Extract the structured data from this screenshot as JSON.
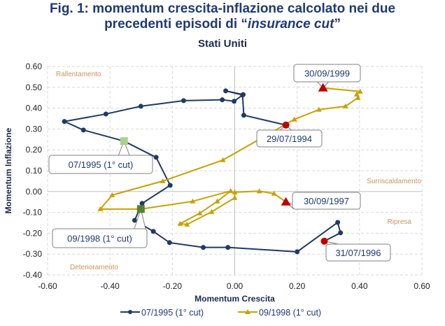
{
  "title_line1": "Fig. 1: momentum crescita-inflazione calcolato nei due",
  "title_line2_prefix": "precedenti episodi di “",
  "title_line2_italic": "insurance cut",
  "title_line2_suffix": "”",
  "subtitle": "Stati Uniti",
  "chart_data": {
    "type": "line",
    "title": "Fig. 1: momentum crescita-inflazione calcolato nei due precedenti episodi di “insurance cut”",
    "subtitle": "Stati Uniti",
    "xlabel": "Momentum Crescita",
    "ylabel": "Momentum Inflazione",
    "xlim": [
      -0.6,
      0.6
    ],
    "ylim": [
      -0.4,
      0.6
    ],
    "xticks": [
      "-0.60",
      "-0.40",
      "-0.20",
      "0.00",
      "0.20",
      "0.40",
      "0.60"
    ],
    "yticks": [
      "-0.40",
      "-0.30",
      "-0.20",
      "-0.10",
      "0.00",
      "0.10",
      "0.20",
      "0.30",
      "0.40",
      "0.50",
      "0.60"
    ],
    "grid": true,
    "legend_position": "bottom",
    "quadrant_labels": [
      "Rallentamento",
      "Surriscaldamento",
      "Ripresa",
      "Deterioramento"
    ],
    "series": [
      {
        "name": "07/1995 (1° cut)",
        "color": "#1f3b63",
        "marker": "circle",
        "x": [
          0.164,
          0.029,
          0.025,
          -0.029,
          0.027,
          -0.002,
          -0.04,
          -0.164,
          -0.301,
          -0.413,
          -0.546,
          -0.485,
          -0.355,
          -0.252,
          -0.207,
          -0.297,
          -0.321,
          -0.261,
          -0.209,
          -0.101,
          -0.022,
          0.2,
          0.33,
          0.339,
          0.287
        ],
        "y": [
          0.319,
          0.366,
          0.463,
          0.483,
          0.465,
          0.433,
          0.44,
          0.436,
          0.409,
          0.372,
          0.336,
          0.295,
          0.242,
          0.164,
          0.03,
          -0.057,
          -0.138,
          -0.191,
          -0.245,
          -0.268,
          -0.268,
          -0.289,
          -0.148,
          -0.198,
          -0.238
        ]
      },
      {
        "name": "09/1998 (1° cut)",
        "color": "#c9a000",
        "marker": "triangle",
        "x": [
          0.164,
          0.126,
          0.079,
          0.0,
          0.0,
          -0.074,
          -0.153,
          -0.175,
          -0.112,
          -0.056,
          -0.013,
          -0.135,
          -0.301,
          -0.431,
          -0.393,
          -0.231,
          -0.038,
          0.191,
          0.27,
          0.355,
          0.395,
          0.391,
          0.402,
          0.283
        ],
        "y": [
          -0.05,
          -0.01,
          0.002,
          -0.003,
          -0.03,
          -0.097,
          -0.158,
          -0.154,
          -0.104,
          -0.047,
          0.003,
          -0.047,
          -0.084,
          -0.084,
          -0.017,
          0.05,
          0.151,
          0.346,
          0.393,
          0.409,
          0.45,
          0.466,
          0.48,
          0.497
        ]
      }
    ],
    "annotations": [
      {
        "text": "29/07/1994",
        "series": 0,
        "index": 0,
        "marker": "red-circle"
      },
      {
        "text": "07/1995 (1° cut)",
        "series": 0,
        "index": 12,
        "marker": "light-green-square"
      },
      {
        "text": "31/07/1996",
        "series": 0,
        "index": 24,
        "marker": "red-circle"
      },
      {
        "text": "30/09/1997",
        "series": 1,
        "index": 0,
        "marker": "red-triangle"
      },
      {
        "text": "09/1998 (1° cut)",
        "series": 1,
        "index": 12,
        "marker": "dark-green-square"
      },
      {
        "text": "30/09/1999",
        "series": 1,
        "index": 23,
        "marker": "red-triangle"
      }
    ]
  }
}
